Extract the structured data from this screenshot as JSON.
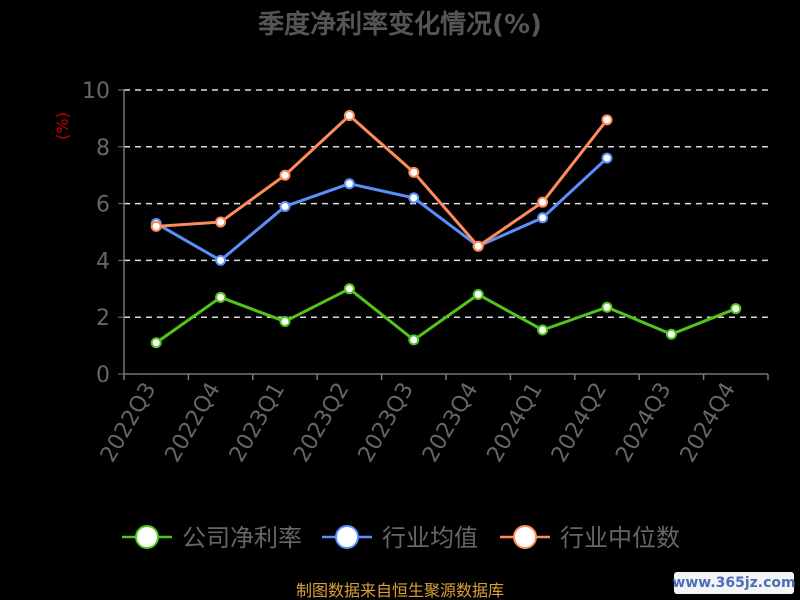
{
  "chart_data": {
    "type": "line",
    "title": "季度净利率变化情况(%)",
    "ylabel": "(%)",
    "ylim": [
      0,
      10
    ],
    "yticks": [
      0,
      2,
      4,
      6,
      8,
      10
    ],
    "grid": true,
    "legend_position": "bottom",
    "categories": [
      "2022Q3",
      "2022Q4",
      "2023Q1",
      "2023Q2",
      "2023Q3",
      "2023Q4",
      "2024Q1",
      "2024Q2",
      "2024Q3",
      "2024Q4"
    ],
    "series": [
      {
        "name": "公司净利率",
        "color": "#52c41a",
        "values": [
          1.1,
          2.7,
          1.85,
          3.0,
          1.2,
          2.8,
          1.55,
          2.35,
          1.4,
          2.3
        ]
      },
      {
        "name": "行业均值",
        "color": "#5b8ff9",
        "values": [
          5.3,
          4.0,
          5.9,
          6.7,
          6.2,
          4.5,
          5.5,
          7.6,
          null,
          null
        ]
      },
      {
        "name": "行业中位数",
        "color": "#ff8c5a",
        "values": [
          5.2,
          5.35,
          7.0,
          9.1,
          7.1,
          4.5,
          6.05,
          8.95,
          null,
          null
        ]
      }
    ],
    "source_note": "制图数据来自恒生聚源数据库"
  },
  "watermark": "www.365jz.com"
}
